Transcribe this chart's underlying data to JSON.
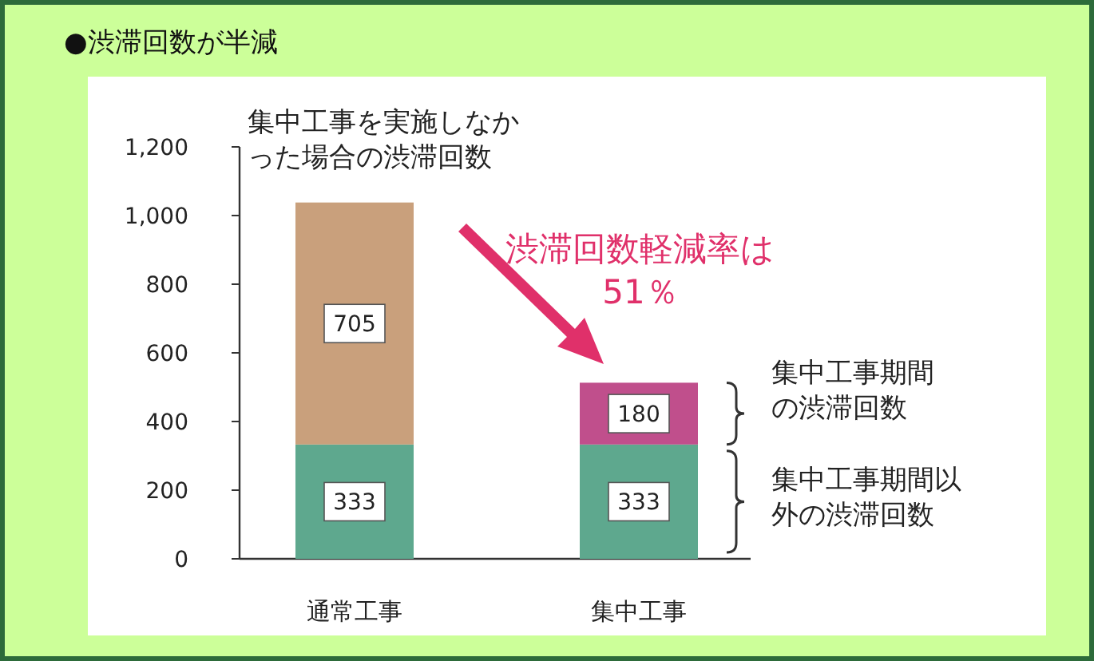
{
  "chart_data": {
    "type": "bar",
    "stacked": true,
    "title": "●渋滞回数が半減",
    "categories": [
      "通常工事",
      "集中工事"
    ],
    "series": [
      {
        "color": "#5ea88e",
        "values": [
          333,
          333
        ]
      },
      {
        "colors": [
          "#c9a07c",
          "#c04f8c"
        ],
        "values": [
          705,
          180
        ]
      }
    ],
    "ylim": [
      0,
      1200
    ],
    "yticks": [
      0,
      200,
      400,
      600,
      800,
      {
        "value": 1000,
        "label": "1,000"
      },
      {
        "value": 1200,
        "label": "1,200"
      }
    ],
    "data_labels": true,
    "annotations": [
      "集中工事を実施しなかった場合の渋滞回数",
      "渋滞回数軽減率は 51％",
      "集中工事期間の渋滞回数",
      "集中工事期間以外の渋滞回数"
    ]
  }
}
